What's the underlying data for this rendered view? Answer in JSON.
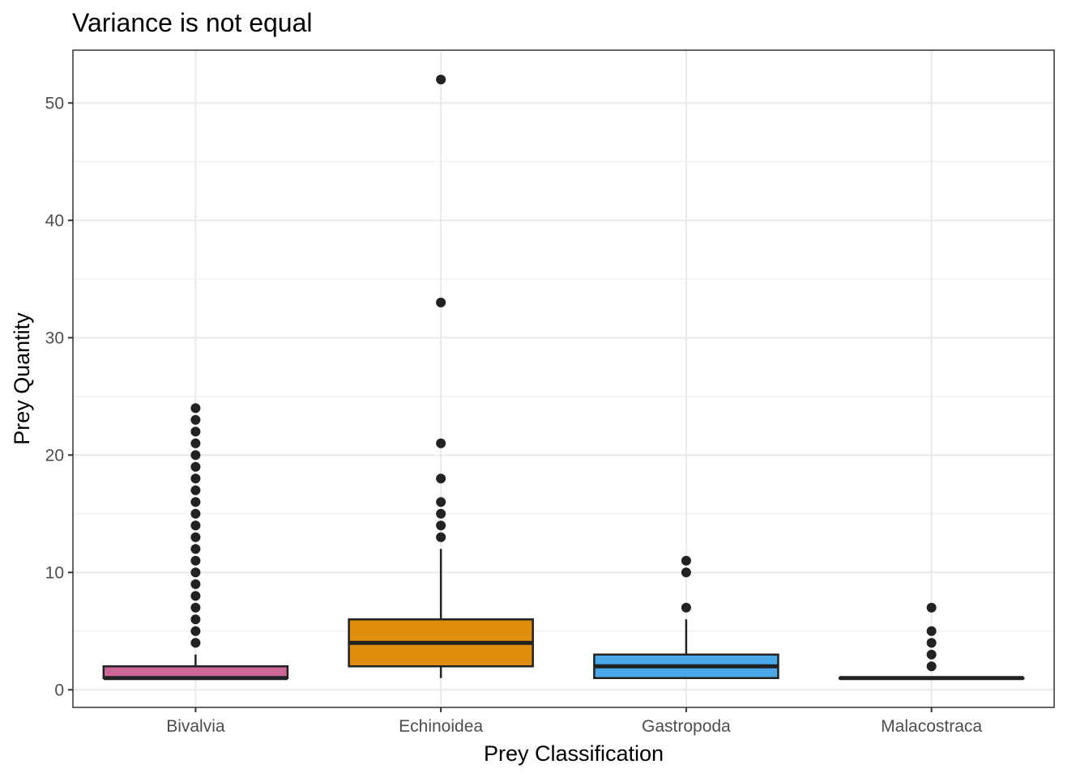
{
  "chart_data": {
    "type": "boxplot",
    "title": "Variance is not equal",
    "xlabel": "Prey Classification",
    "ylabel": "Prey Quantity",
    "ylim": [
      -1.5,
      54.5
    ],
    "yticks": [
      0,
      10,
      20,
      30,
      40,
      50
    ],
    "yticks_minor": [
      5,
      15,
      25,
      35,
      45
    ],
    "grid": true,
    "categories": [
      "Bivalvia",
      "Echinoidea",
      "Gastropoda",
      "Malacostraca"
    ],
    "boxes": [
      {
        "category": "Bivalvia",
        "color": "#cc6699",
        "whisker_low": 1,
        "q1": 1,
        "median": 1,
        "q3": 2,
        "whisker_high": 3,
        "outliers": [
          4,
          5,
          6,
          7,
          8,
          9,
          10,
          11,
          12,
          13,
          14,
          15,
          16,
          17,
          18,
          19,
          20,
          21,
          22,
          23,
          24
        ]
      },
      {
        "category": "Echinoidea",
        "color": "#e08e0b",
        "whisker_low": 1,
        "q1": 2,
        "median": 4,
        "q3": 6,
        "whisker_high": 12,
        "outliers": [
          13,
          14,
          15,
          16,
          18,
          21,
          33,
          52
        ]
      },
      {
        "category": "Gastropoda",
        "color": "#4aa8e8",
        "whisker_low": 1,
        "q1": 1,
        "median": 2,
        "q3": 3,
        "whisker_high": 6,
        "outliers": [
          7,
          10,
          11
        ]
      },
      {
        "category": "Malacostraca",
        "color": "#3a3a3a",
        "whisker_low": 1,
        "q1": 1,
        "median": 1,
        "q3": 1,
        "whisker_high": 1,
        "outliers": [
          2,
          3,
          4,
          5,
          7
        ]
      }
    ]
  }
}
